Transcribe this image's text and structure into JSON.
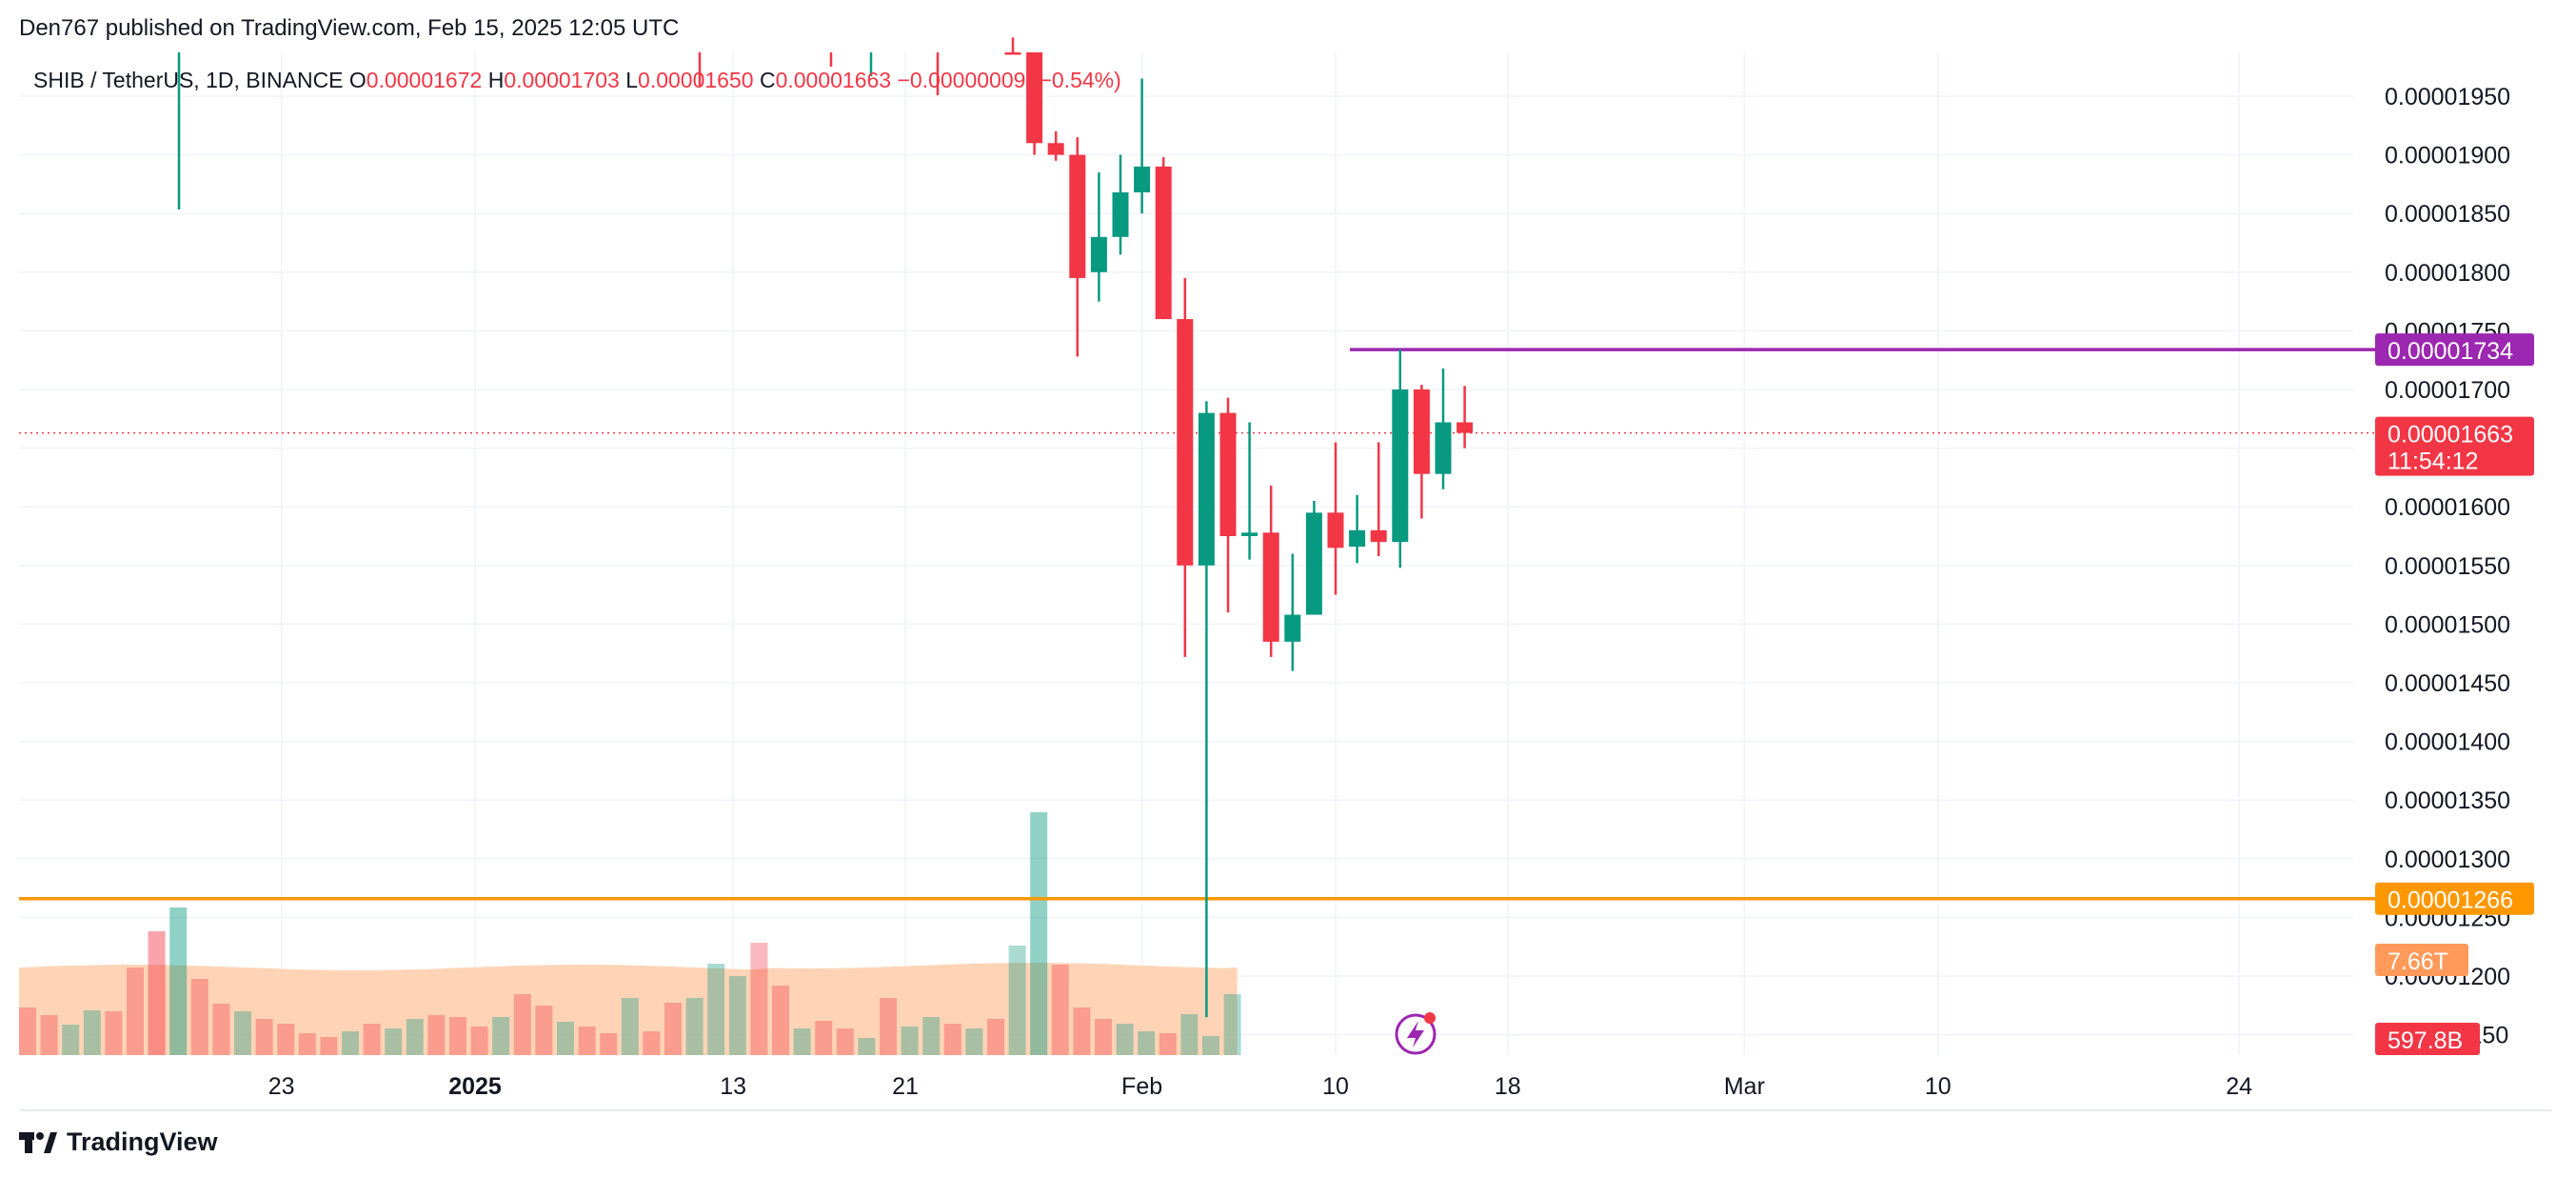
{
  "header": {
    "published": "Den767 published on TradingView.com, Feb 15, 2025 12:05 UTC"
  },
  "legend": {
    "symbol": "SHIB / TetherUS, 1D, BINANCE",
    "o_label": "O",
    "o_value": "0.00001672",
    "h_label": "H",
    "h_value": "0.00001703",
    "l_label": "L",
    "l_value": "0.00001650",
    "c_label": "C",
    "c_value": "0.00001663",
    "change": "−0.00000009 (−0.54%)"
  },
  "footer": {
    "brand": "TradingView"
  },
  "colors": {
    "up": "#089981",
    "down": "#F23645",
    "resistance": "#9C27B0",
    "support": "#FF9800",
    "grid": "#F0F3FA"
  },
  "chart_data": {
    "type": "candlestick",
    "x_tick_labels": [
      "23",
      "2025",
      "13",
      "21",
      "Feb",
      "10",
      "18",
      "Mar",
      "10",
      "24"
    ],
    "y_tick_labels": [
      "0.00001950",
      "0.00001900",
      "0.00001850",
      "0.00001800",
      "0.00001750",
      "0.00001700",
      "0.00001650",
      "0.00001600",
      "0.00001550",
      "0.00001500",
      "0.00001450",
      "0.00001400",
      "0.00001350",
      "0.00001300",
      "0.00001250",
      "0.00001200",
      "0.00001150"
    ],
    "ylim": [
      1.13e-05,
      1.99e-05
    ],
    "price_axis": "right",
    "grid": true,
    "candles": [
      {
        "date": "2025-01-26",
        "o": 2.06e-05,
        "h": 2.09e-05,
        "l": 2e-05,
        "c": 2.025e-05
      },
      {
        "date": "2025-01-27",
        "o": 1.99e-05,
        "h": 2.04e-05,
        "l": 1.9e-05,
        "c": 1.91e-05
      },
      {
        "date": "2025-01-28",
        "o": 1.91e-05,
        "h": 1.92e-05,
        "l": 1.895e-05,
        "c": 1.9e-05
      },
      {
        "date": "2025-01-29",
        "o": 1.9e-05,
        "h": 1.915e-05,
        "l": 1.728e-05,
        "c": 1.795e-05
      },
      {
        "date": "2025-01-30",
        "o": 1.8e-05,
        "h": 1.885e-05,
        "l": 1.775e-05,
        "c": 1.83e-05
      },
      {
        "date": "2025-01-31",
        "o": 1.83e-05,
        "h": 1.9e-05,
        "l": 1.815e-05,
        "c": 1.868e-05
      },
      {
        "date": "2025-02-01",
        "o": 1.868e-05,
        "h": 1.965e-05,
        "l": 1.85e-05,
        "c": 1.89e-05
      },
      {
        "date": "2025-02-02",
        "o": 1.89e-05,
        "h": 1.898e-05,
        "l": 1.76e-05,
        "c": 1.76e-05
      },
      {
        "date": "2025-02-03",
        "o": 1.76e-05,
        "h": 1.795e-05,
        "l": 1.472e-05,
        "c": 1.55e-05
      },
      {
        "date": "2025-02-04",
        "o": 1.55e-05,
        "h": 1.69e-05,
        "l": 1.165e-05,
        "c": 1.68e-05
      },
      {
        "date": "2025-02-05",
        "o": 1.68e-05,
        "h": 1.693e-05,
        "l": 1.51e-05,
        "c": 1.575e-05
      },
      {
        "date": "2025-02-06",
        "o": 1.575e-05,
        "h": 1.672e-05,
        "l": 1.555e-05,
        "c": 1.578e-05
      },
      {
        "date": "2025-02-07",
        "o": 1.578e-05,
        "h": 1.618e-05,
        "l": 1.472e-05,
        "c": 1.485e-05
      },
      {
        "date": "2025-02-08",
        "o": 1.485e-05,
        "h": 1.56e-05,
        "l": 1.46e-05,
        "c": 1.508e-05
      },
      {
        "date": "2025-02-09",
        "o": 1.508e-05,
        "h": 1.605e-05,
        "l": 1.51e-05,
        "c": 1.595e-05
      },
      {
        "date": "2025-02-10",
        "o": 1.595e-05,
        "h": 1.655e-05,
        "l": 1.525e-05,
        "c": 1.565e-05
      },
      {
        "date": "2025-02-11",
        "o": 1.566e-05,
        "h": 1.61e-05,
        "l": 1.552e-05,
        "c": 1.58e-05
      },
      {
        "date": "2025-02-12",
        "o": 1.58e-05,
        "h": 1.655e-05,
        "l": 1.558e-05,
        "c": 1.57e-05
      },
      {
        "date": "2025-02-13",
        "o": 1.57e-05,
        "h": 1.734e-05,
        "l": 1.548e-05,
        "c": 1.7e-05
      },
      {
        "date": "2025-02-14",
        "o": 1.7e-05,
        "h": 1.704e-05,
        "l": 1.59e-05,
        "c": 1.628e-05
      },
      {
        "date": "2025-02-15",
        "o": 1.628e-05,
        "h": 1.718e-05,
        "l": 1.615e-05,
        "c": 1.672e-05
      },
      {
        "date": "2025-02-16",
        "o": 1.672e-05,
        "h": 1.703e-05,
        "l": 1.65e-05,
        "c": 1.663e-05
      }
    ],
    "volume_ma_label": "7.66T",
    "volume_label": "597.8B",
    "horizontal_lines": [
      {
        "name": "resistance",
        "value": 1.734e-05,
        "label": "0.00001734"
      },
      {
        "name": "support",
        "value": 1.266e-05,
        "label": "0.00001266"
      }
    ],
    "last_price": {
      "value": 1.663e-05,
      "label": "0.00001663",
      "countdown": "11:54:12"
    }
  }
}
